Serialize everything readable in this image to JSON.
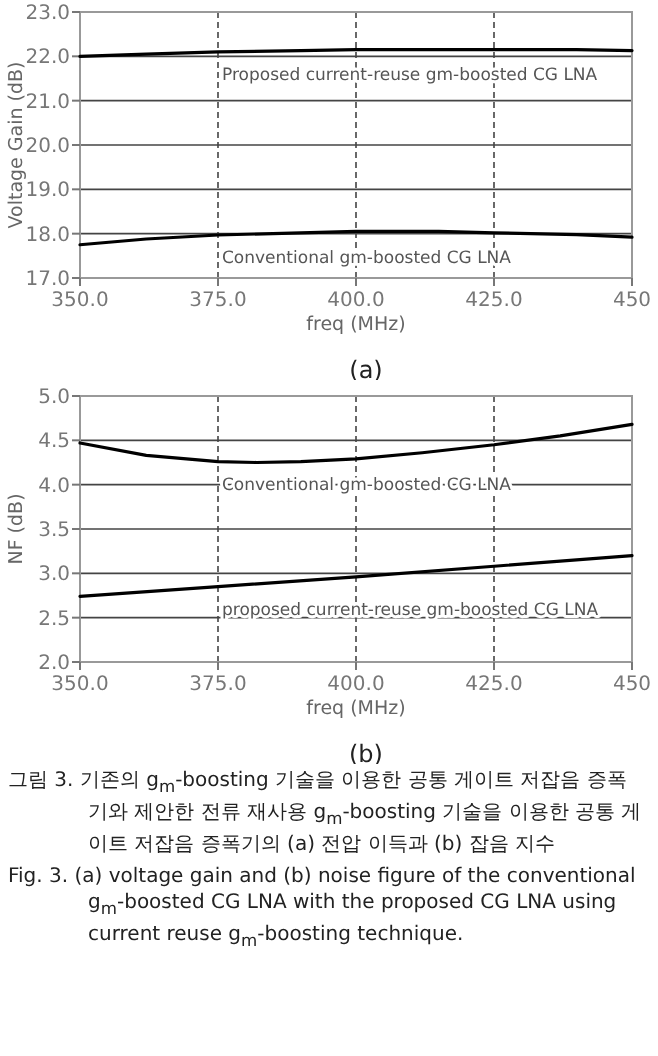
{
  "chart_data": [
    {
      "type": "line",
      "annotations": [
        "(a)"
      ],
      "xlabel": "freq (MHz)",
      "ylabel": "Voltage Gain (dB)",
      "grid": true,
      "xlim": [
        350,
        450
      ],
      "xticks": [
        {
          "value": 350,
          "label": "350.0"
        },
        {
          "value": 375,
          "label": "375.0"
        },
        {
          "value": 400,
          "label": "400.0"
        },
        {
          "value": 425,
          "label": "425.0"
        },
        450
      ],
      "ylim": [
        17,
        23
      ],
      "yticks": [
        {
          "value": 17,
          "label": "17.0"
        },
        {
          "value": 18,
          "label": "18.0"
        },
        {
          "value": 19,
          "label": "19.0"
        },
        {
          "value": 20,
          "label": "20.0"
        },
        {
          "value": 21,
          "label": "21.0"
        },
        {
          "value": 22,
          "label": "22.0"
        },
        {
          "value": 23,
          "label": "23.0"
        }
      ],
      "series": [
        {
          "name": "Proposed current-reuse gm-boosted CG LNA",
          "color": "#000000",
          "x": [
            350,
            362,
            375,
            390,
            400,
            425,
            440,
            450
          ],
          "values": [
            22.0,
            22.05,
            22.1,
            22.13,
            22.15,
            22.15,
            22.15,
            22.13
          ]
        },
        {
          "name": "Conventional gm-boosted CG LNA",
          "color": "#000000",
          "x": [
            350,
            362,
            375,
            390,
            400,
            415,
            425,
            440,
            450
          ],
          "values": [
            17.75,
            17.88,
            17.97,
            18.02,
            18.05,
            18.05,
            18.02,
            17.98,
            17.92
          ]
        }
      ]
    },
    {
      "type": "line",
      "annotations": [
        "(b)",
        "그림 3. 기존의 g$_{m}$-boosting 기술을 이용한 공통 게이트 저잡음 증폭기와 제안한 전류 재사용 g$_{m}$-boosting 기술을 이용한 공통 게이트 저잡음 증폭기의 (a) 전압 이득과 (b) 잡음 지수",
        "Fig. 3. (a) voltage gain and (b) noise figure of the conventional g$_{m}$-boosted CG LNA with the proposed CG LNA using current reuse g$_{m}$-boosting technique."
      ],
      "xlabel": "freq (MHz)",
      "ylabel": "NF (dB)",
      "grid": true,
      "xlim": [
        350,
        450
      ],
      "xticks": [
        {
          "value": 350,
          "label": "350.0"
        },
        {
          "value": 375,
          "label": "375.0"
        },
        {
          "value": 400,
          "label": "400.0"
        },
        {
          "value": 425,
          "label": "425.0"
        },
        450
      ],
      "ylim": [
        2,
        5
      ],
      "yticks": [
        {
          "value": 2,
          "label": "2.0"
        },
        {
          "value": 2.5,
          "label": "2.5"
        },
        {
          "value": 3,
          "label": "3.0"
        },
        {
          "value": 3.5,
          "label": "3.5"
        },
        {
          "value": 4,
          "label": "4.0"
        },
        {
          "value": 4.5,
          "label": "4.5"
        },
        {
          "value": 5,
          "label": "5.0"
        }
      ],
      "series": [
        {
          "name": "Conventional gm-boosted CG LNA",
          "color": "#000000",
          "x": [
            350,
            362,
            375,
            382,
            390,
            400,
            412,
            425,
            437,
            450
          ],
          "values": [
            4.47,
            4.33,
            4.26,
            4.25,
            4.26,
            4.29,
            4.36,
            4.45,
            4.55,
            4.68
          ]
        },
        {
          "name": "proposed current-reuse gm-boosted CG LNA",
          "color": "#000000",
          "x": [
            350,
            375,
            400,
            425,
            450
          ],
          "values": [
            2.74,
            2.85,
            2.96,
            3.08,
            3.2
          ]
        }
      ]
    }
  ]
}
